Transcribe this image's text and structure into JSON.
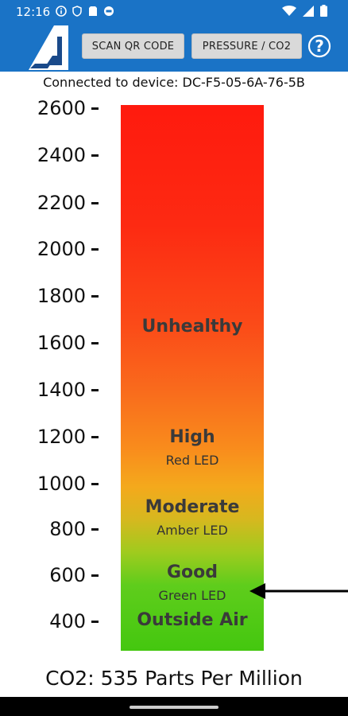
{
  "status_bar": {
    "time": "12:16",
    "icons": [
      "info-icon",
      "shield-icon",
      "sim-card-icon",
      "privacy-icon",
      "wifi-icon",
      "signal-icon",
      "battery-icon"
    ]
  },
  "toolbar": {
    "scan_label": "SCAN QR CODE",
    "pressure_label": "PRESSURE / CO2",
    "help_label": "?"
  },
  "connection": {
    "text": "Connected to device: DC-F5-05-6A-76-5B"
  },
  "scale": {
    "ticks": [
      "2600",
      "2400",
      "2200",
      "2000",
      "1800",
      "1600",
      "1400",
      "1200",
      "1000",
      "800",
      "600",
      "400"
    ]
  },
  "zones": {
    "unhealthy": "Unhealthy",
    "high": "High",
    "high_led": "Red LED",
    "moderate": "Moderate",
    "moderate_led": "Amber LED",
    "good": "Good",
    "good_led": "Green LED",
    "outside": "Outside Air"
  },
  "reading": {
    "text": "CO2: 535 Parts Per Million",
    "value_ppm": 535
  },
  "colors": {
    "app_bar": "#1a73c6",
    "red": "#ff1a0e",
    "amber": "#f4a91c",
    "green": "#44c70f"
  }
}
